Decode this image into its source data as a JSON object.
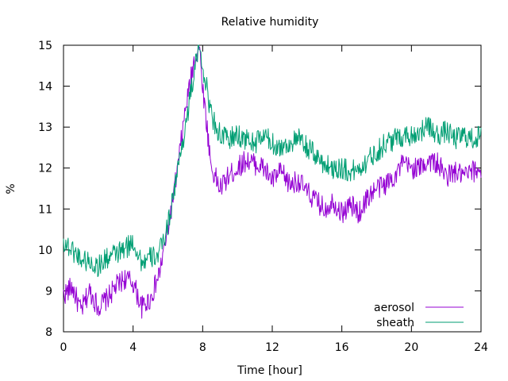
{
  "chart_data": {
    "type": "line",
    "title": "Relative humidity",
    "xlabel": "Time [hour]",
    "ylabel": "%",
    "xlim": [
      0,
      24
    ],
    "ylim": [
      8,
      15
    ],
    "xticks": [
      0,
      4,
      8,
      12,
      16,
      20,
      24
    ],
    "yticks": [
      8,
      9,
      10,
      11,
      12,
      13,
      14,
      15
    ],
    "grid": false,
    "legend_position": "bottom-right",
    "series": [
      {
        "name": "aerosol",
        "color": "#9400d3",
        "x": [
          0,
          0.5,
          1,
          1.5,
          2,
          2.5,
          3,
          3.5,
          4,
          4.5,
          5,
          5.5,
          6,
          6.5,
          7,
          7.5,
          7.8,
          8,
          8.5,
          9,
          9.5,
          10,
          10.5,
          11,
          11.5,
          12,
          12.5,
          13,
          13.5,
          14,
          14.5,
          15,
          15.5,
          16,
          16.5,
          17,
          17.5,
          18,
          18.5,
          19,
          19.5,
          20,
          20.5,
          21,
          21.5,
          22,
          22.5,
          23,
          23.5,
          24
        ],
        "y": [
          8.9,
          9.1,
          8.5,
          9.0,
          8.6,
          8.8,
          9.1,
          9.3,
          9.2,
          8.6,
          8.8,
          9.4,
          10.5,
          11.8,
          13.4,
          14.6,
          15.0,
          14.0,
          12.0,
          11.5,
          11.8,
          12.0,
          12.2,
          12.1,
          12.0,
          11.7,
          11.9,
          11.6,
          11.7,
          11.4,
          11.2,
          11.0,
          11.2,
          10.9,
          11.1,
          10.9,
          11.3,
          11.5,
          11.6,
          11.8,
          12.1,
          12.0,
          12.0,
          12.2,
          12.1,
          11.8,
          11.9,
          11.8,
          11.9,
          12.0
        ]
      },
      {
        "name": "sheath",
        "color": "#009e73",
        "x": [
          0,
          0.5,
          1,
          1.5,
          2,
          2.5,
          3,
          3.5,
          4,
          4.5,
          5,
          5.5,
          6,
          6.5,
          7,
          7.5,
          7.8,
          8,
          8.5,
          9,
          9.5,
          10,
          10.5,
          11,
          11.5,
          12,
          12.5,
          13,
          13.5,
          14,
          14.5,
          15,
          15.5,
          16,
          16.5,
          17,
          17.5,
          18,
          18.5,
          19,
          19.5,
          20,
          20.5,
          21,
          21.5,
          22,
          22.5,
          23,
          23.5,
          24
        ],
        "y": [
          10.2,
          10.0,
          9.8,
          9.7,
          9.6,
          9.8,
          9.9,
          10.0,
          10.2,
          9.7,
          9.8,
          9.9,
          10.6,
          11.8,
          13.0,
          14.3,
          15.0,
          14.5,
          13.3,
          12.8,
          12.7,
          12.8,
          12.7,
          12.6,
          12.8,
          12.6,
          12.5,
          12.6,
          12.7,
          12.5,
          12.3,
          12.1,
          12.0,
          12.0,
          11.9,
          12.0,
          12.2,
          12.4,
          12.6,
          12.7,
          12.8,
          12.8,
          12.9,
          13.0,
          12.8,
          12.9,
          12.7,
          12.8,
          12.7,
          12.8
        ]
      }
    ]
  }
}
